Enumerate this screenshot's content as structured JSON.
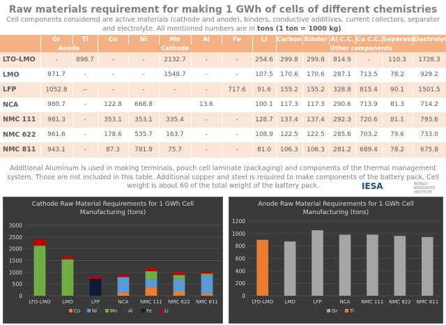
{
  "header": {
    "title": "Raw materials requirement for making 1 GWh of cells of different chemistries",
    "subtitle_pre": "Cell components considered are active materials (cathode and anode), binders, conductive additives, current collectors, separator and electrolyte. All mentioned numbers are in ",
    "subtitle_bold": "tons (1 ton = 1000 kg)",
    "subtitle_post": "."
  },
  "table": {
    "columns": [
      "",
      "Gr",
      "Ti",
      "Co",
      "Ni",
      "Mn",
      "Al",
      "Fe",
      "Li",
      "Carbon",
      "Binder",
      "Al C.C.",
      "Cu C.C.",
      "Separator",
      "Electrolyte"
    ],
    "groups": {
      "anode": "Anode",
      "cathode": "Cathode",
      "other": "Other components"
    },
    "rows": [
      [
        "LTO-LMO",
        "-",
        "898.7",
        "-",
        "-",
        "2132.7",
        "-",
        "-",
        "254.6",
        "299.8",
        "299.8",
        "814.9",
        "-",
        "110.3",
        "1728.3"
      ],
      [
        "LMO",
        "871.7",
        "-",
        "-",
        "-",
        "1548.7",
        "-",
        "-",
        "107.5",
        "170.6",
        "170.6",
        "287.1",
        "713.5",
        "78.2",
        "929.2"
      ],
      [
        "LFP",
        "1052.8",
        "--",
        "-",
        "-",
        "-",
        "-",
        "717.6",
        "91.6",
        "155.2",
        "155.2",
        "328.8",
        "815.4",
        "90.1",
        "1501.5"
      ],
      [
        "NCA",
        "980.7",
        "-",
        "122.8",
        "668.8",
        "",
        "13.6",
        "",
        "100.1",
        "117.3",
        "117.3",
        "290.6",
        "713.9",
        "81.3",
        "714.2"
      ],
      [
        "NMC 111",
        "981.3",
        "-",
        "353.1",
        "353.1",
        "335.4",
        "-",
        "-",
        "128.7",
        "137.4",
        "137.4",
        "292.3",
        "720.6",
        "81.1",
        "793.6"
      ],
      [
        "NMC 622",
        "961.6",
        "-",
        "178.6",
        "535.7",
        "163.7",
        "-",
        "-",
        "108.9",
        "122.5",
        "122.5",
        "285.6",
        "703.2",
        "79.6",
        "733.0"
      ],
      [
        "NMC 811",
        "943.1",
        "-",
        "87.3",
        "781.9",
        "75.7",
        "-",
        "-",
        "81.0",
        "106.3",
        "106.3",
        "281.2",
        "689.4",
        "78.2",
        "675.8"
      ]
    ]
  },
  "note": "Additional Aluminum is used in making terminals, pouch cell laminate (packaging) and components of the thermal management system. Those are not included in this table. Additional copper and steel is required to make components of the battery pack. Cell weight is about 60 of the total weight of the battery pack.",
  "logo": {
    "iesa": "IESA",
    "wri": "WORLD RESOURCES INSTITUTE"
  },
  "chart_data": [
    {
      "type": "bar",
      "stacked": true,
      "title": "Cathode Raw Material Requirements for 1 GWh Cell Manufacturing (tons)",
      "categories": [
        "LTO-LMO",
        "LMO",
        "LFP",
        "NCA",
        "NMC 111",
        "NMC 622",
        "NMC 811"
      ],
      "ylim": [
        0,
        3000
      ],
      "yticks": [
        0,
        500,
        1000,
        1500,
        2000,
        2500,
        3000
      ],
      "grid": true,
      "legend_position": "bottom",
      "series": [
        {
          "name": "Co",
          "color": "#ed7d31",
          "values": [
            0,
            0,
            0,
            122.8,
            353.1,
            178.6,
            87.3
          ]
        },
        {
          "name": "Ni",
          "color": "#5b9bd5",
          "values": [
            0,
            0,
            0,
            668.8,
            353.1,
            535.7,
            781.9
          ]
        },
        {
          "name": "Mn",
          "color": "#70ad47",
          "values": [
            2132.7,
            1548.7,
            0,
            0,
            335.4,
            163.7,
            75.7
          ]
        },
        {
          "name": "Al",
          "color": "#264478",
          "values": [
            0,
            0,
            0,
            13.6,
            0,
            0,
            0
          ]
        },
        {
          "name": "Fe",
          "color": "#0d1a3a",
          "values": [
            0,
            0,
            717.6,
            0,
            0,
            0,
            0
          ]
        },
        {
          "name": "Li",
          "color": "#c00000",
          "values": [
            254.6,
            107.5,
            91.6,
            100.1,
            128.7,
            108.9,
            81.0
          ]
        }
      ]
    },
    {
      "type": "bar",
      "stacked": true,
      "title": "Anode Raw Material Requirements for 1 GWh Cell Manufacturing (tons)",
      "categories": [
        "LTO-LMO",
        "LMO",
        "LFP",
        "NCA",
        "NMC 111",
        "NMC 622",
        "NMC 811"
      ],
      "ylim": [
        0,
        1200
      ],
      "yticks": [
        0,
        200,
        400,
        600,
        800,
        1000,
        1200
      ],
      "grid": true,
      "legend_position": "bottom",
      "series": [
        {
          "name": "Gr",
          "color": "#a5a5a5",
          "values": [
            0,
            871.7,
            1052.8,
            980.7,
            981.3,
            961.6,
            943.1
          ]
        },
        {
          "name": "Ti",
          "color": "#ed7d31",
          "values": [
            898.7,
            0,
            0,
            0,
            0,
            0,
            0
          ]
        }
      ]
    }
  ]
}
